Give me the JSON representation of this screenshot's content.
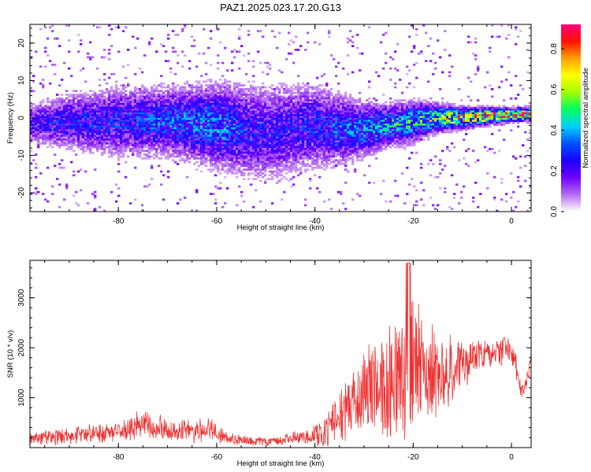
{
  "title": "PAZ1.2025.023.17.20.G13",
  "chart_data": [
    {
      "type": "heatmap",
      "xlabel": "Height of straight line (km)",
      "ylabel": "Frequency (Hz)",
      "xlim": [
        -98,
        4
      ],
      "ylim": [
        -25,
        25
      ],
      "xticks": [
        -80,
        -60,
        -40,
        -20,
        0
      ],
      "yticks": [
        -20,
        -10,
        0,
        10,
        20
      ],
      "colorbar": {
        "label": "Normalized spectral amplitude",
        "range": [
          0,
          0.92
        ],
        "ticks": [
          0.0,
          0.2,
          0.4,
          0.6,
          0.8
        ],
        "tick_labels": [
          "0.0",
          "0.2",
          "0.4",
          "0.6",
          "0.8"
        ],
        "colormap": [
          "#ffffff",
          "#b56cf0",
          "#7000ff",
          "#1a00ff",
          "#0050ff",
          "#00d0ff",
          "#00ff60",
          "#a0ff00",
          "#ffff00",
          "#ffa000",
          "#ff1000",
          "#ff0080"
        ]
      },
      "ridge": {
        "x": [
          -97,
          -90,
          -80,
          -70,
          -60,
          -50,
          -40,
          -35,
          -30,
          -25,
          -20,
          -15,
          -10,
          -5,
          0,
          4
        ],
        "center_freq_hz": [
          -1.5,
          -1,
          -1,
          -1,
          -2,
          -4,
          -2,
          -3,
          -3,
          -2,
          -1,
          0,
          0,
          0.5,
          0.8,
          1
        ],
        "width_hz": [
          3,
          4,
          5,
          5,
          6,
          7,
          6,
          5,
          4,
          3,
          3,
          2,
          1.5,
          1.2,
          1,
          1
        ],
        "peak_amplitude": [
          0.25,
          0.3,
          0.3,
          0.35,
          0.4,
          0.25,
          0.3,
          0.35,
          0.4,
          0.45,
          0.5,
          0.6,
          0.8,
          0.85,
          0.9,
          0.85
        ]
      }
    },
    {
      "type": "line",
      "xlabel": "Height of straight line (km)",
      "ylabel": "SNR (10 * v/v)",
      "xlim": [
        -98,
        4
      ],
      "ylim": [
        0,
        3750
      ],
      "xticks": [
        -80,
        -60,
        -40,
        -20,
        0
      ],
      "yticks": [
        1000,
        2000,
        3000
      ],
      "line_color": "#ee3333",
      "envelope": {
        "x": [
          -98,
          -90,
          -80,
          -75,
          -70,
          -65,
          -62,
          -58,
          -55,
          -50,
          -45,
          -42,
          -40,
          -38,
          -35,
          -32,
          -30,
          -28,
          -25,
          -22,
          -20,
          -18,
          -15,
          -12,
          -10,
          -8,
          -5,
          -3,
          -1,
          0,
          1,
          2,
          3,
          4
        ],
        "mean": [
          200,
          230,
          320,
          450,
          350,
          300,
          400,
          180,
          150,
          120,
          180,
          200,
          250,
          300,
          700,
          900,
          1100,
          1200,
          1300,
          1400,
          1600,
          1500,
          1500,
          1550,
          1700,
          1800,
          1850,
          1900,
          2000,
          1900,
          1600,
          1100,
          1300,
          1800
        ],
        "amplitude": [
          150,
          170,
          200,
          300,
          230,
          200,
          240,
          120,
          100,
          90,
          120,
          150,
          200,
          300,
          500,
          700,
          900,
          1000,
          1100,
          1200,
          1400,
          1000,
          800,
          700,
          500,
          400,
          300,
          300,
          300,
          250,
          250,
          150,
          200,
          200
        ]
      }
    }
  ]
}
